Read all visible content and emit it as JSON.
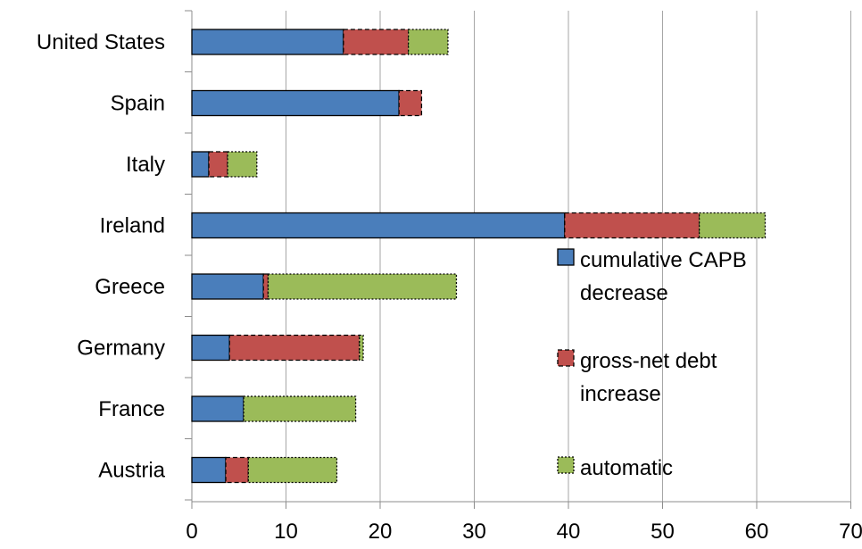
{
  "chart_data": {
    "type": "bar",
    "orientation": "horizontal",
    "stacked": true,
    "title": "",
    "xlabel": "",
    "ylabel": "",
    "xlim": [
      0,
      70
    ],
    "x_ticks": [
      "0",
      "10",
      "20",
      "30",
      "40",
      "50",
      "60",
      "70"
    ],
    "grid": "vertical-major",
    "legend_position": "right-center",
    "categories": [
      "United States",
      "Spain",
      "Italy",
      "Ireland",
      "Greece",
      "Germany",
      "France",
      "Austria"
    ],
    "series": [
      {
        "name": "cumulative CAPB decrease",
        "color": "#4a7ebb",
        "border": "solid",
        "values": [
          16.1,
          22.0,
          1.8,
          39.6,
          7.6,
          4.0,
          5.5,
          3.6
        ]
      },
      {
        "name": "gross-net debt increase",
        "color": "#c0504d",
        "border": "dashed",
        "values": [
          6.9,
          2.4,
          2.0,
          14.3,
          0.5,
          13.8,
          0.0,
          2.4
        ]
      },
      {
        "name": "automatic",
        "color": "#9bbb59",
        "border": "dotted",
        "values": [
          4.2,
          0.0,
          3.1,
          7.0,
          20.0,
          0.4,
          11.9,
          9.4
        ]
      }
    ],
    "legend": {
      "entries": [
        [
          "cumulative CAPB",
          "decrease"
        ],
        [
          "gross-net debt",
          "increase"
        ],
        [
          "automatic"
        ]
      ]
    }
  }
}
